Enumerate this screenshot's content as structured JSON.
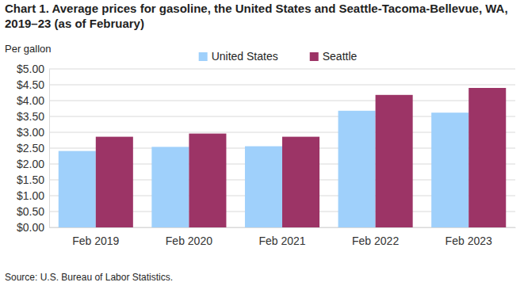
{
  "chart_data": {
    "type": "bar",
    "title": "Chart 1. Average prices for gasoline, the United States and Seattle-Tacoma-Bellevue, WA, 2019–23 (as of February)",
    "y_label": "Per gallon",
    "source": "Source: U.S. Bureau of Labor Statistics.",
    "categories": [
      "Feb 2019",
      "Feb 2020",
      "Feb 2021",
      "Feb 2022",
      "Feb 2023"
    ],
    "series": [
      {
        "name": "United States",
        "color": "#9fd0fb",
        "values": [
          2.41,
          2.54,
          2.56,
          3.68,
          3.62
        ]
      },
      {
        "name": "Seattle",
        "color": "#9c3466",
        "values": [
          2.86,
          2.96,
          2.86,
          4.18,
          4.4
        ]
      }
    ],
    "ylim": [
      0,
      5
    ],
    "yticks": [
      {
        "value": 0,
        "label": "$0.00"
      },
      {
        "value": 0.5,
        "label": "$0.50"
      },
      {
        "value": 1,
        "label": "$1.00"
      },
      {
        "value": 1.5,
        "label": "$1.50"
      },
      {
        "value": 2,
        "label": "$2.00"
      },
      {
        "value": 2.5,
        "label": "$2.50"
      },
      {
        "value": 3,
        "label": "$3.00"
      },
      {
        "value": 3.5,
        "label": "$3.50"
      },
      {
        "value": 4,
        "label": "$4.00"
      },
      {
        "value": 4.5,
        "label": "$4.50"
      },
      {
        "value": 5,
        "label": "$5.00"
      }
    ],
    "grid": true,
    "legend": "top"
  }
}
